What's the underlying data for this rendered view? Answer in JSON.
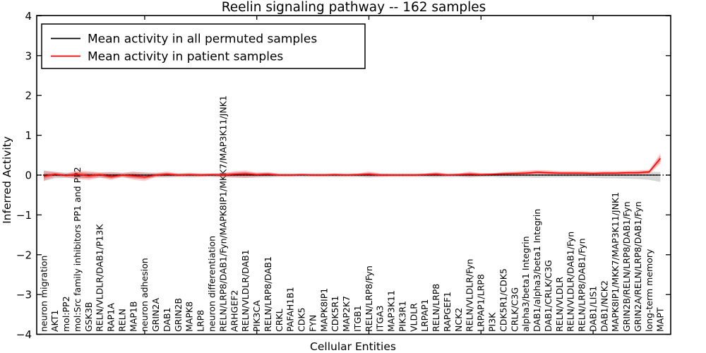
{
  "chart_data": {
    "type": "line",
    "title": "Reelin signaling pathway -- 162 samples",
    "xlabel": "Cellular Entities",
    "ylabel": "Inferred Activity",
    "ylim": [
      -4,
      4
    ],
    "yticks": [
      4,
      3,
      2,
      1,
      0,
      -1,
      -2,
      -3,
      -4
    ],
    "xtick_positions": [
      9,
      19,
      29,
      39,
      49
    ],
    "grid": false,
    "legend_position": "upper left",
    "zero_line": 0,
    "categories": [
      "neuron migration",
      "AKT1",
      "mol:PP2",
      "mol:Src family inhibitors PP1 and PP2",
      "GSK3B",
      "RELN/VLDLR/DAB1/P13K",
      "RAP1A",
      "RELN",
      "MAP1B",
      "neuron adhesion",
      "GRIN2A",
      "DAB1",
      "GRIN2B",
      "MAPK8",
      "LRP8",
      "neuron differentiation",
      "RELN/LRP8/DAB1/Fyn/MAPK8IP1/MKK7/MAP3K11/JNK1",
      "ARHGEF2",
      "RELN/VLDLR/DAB1",
      "PIK3CA",
      "RELN/LRP8/DAB1",
      "CRKL",
      "PAFAH1B1",
      "CDK5",
      "FYN",
      "MAPK8IP1",
      "CDK5R1",
      "MAP2K7",
      "ITGB1",
      "RELN/LRP8/Fyn",
      "ITGA3",
      "MAP3K11",
      "PIK3R1",
      "VLDLR",
      "LRPAP1",
      "RELN/LRP8",
      "RAPGEF1",
      "NCK2",
      "RELN/VLDLR/Fyn",
      "LRPAP1/LRP8",
      "PI3K",
      "CDK5R1/CDK5",
      "CRLK/C3G",
      "alpha3/beta1 Integrin",
      "DAB1/alpha3/beta1 Integrin",
      "DAB1/CRLK/C3G",
      "RELN/VLDLR",
      "RELN/VLDLR/DAB1/Fyn",
      "RELN/LRP8/DAB1/Fyn",
      "DAB1/LIS1",
      "DAB1/NCK2",
      "MAPK8IP1/MKK7/MAP3K11/JNK1",
      "GRIN2B/RELN/LRP8/DAB1/Fyn",
      "GRIN2A/RELN/LRP8/DAB1/Fyn",
      "long-term memory",
      "MAPT"
    ],
    "series": [
      {
        "name": "Mean activity in all permuted samples",
        "color": "#000000",
        "band_color": "#999999",
        "values": [
          0,
          0,
          0,
          0,
          0,
          0,
          0,
          0,
          0,
          0,
          0,
          0,
          0,
          0,
          0,
          0,
          0,
          0,
          0,
          0,
          0,
          0,
          0,
          0,
          0,
          0,
          0,
          0,
          0,
          0,
          0,
          0,
          0,
          0,
          0,
          0,
          0,
          0,
          0,
          0,
          0,
          0,
          0,
          0,
          0,
          0,
          0,
          0,
          0,
          0,
          0,
          0,
          0,
          0,
          0,
          0
        ],
        "band_upper": [
          0.12,
          0.08,
          0.06,
          0.07,
          0.07,
          0.06,
          0.07,
          0.06,
          0.07,
          0.07,
          0.06,
          0.06,
          0.05,
          0.06,
          0.05,
          0.05,
          0.06,
          0.06,
          0.07,
          0.06,
          0.06,
          0.05,
          0.05,
          0.05,
          0.05,
          0.05,
          0.05,
          0.05,
          0.05,
          0.06,
          0.05,
          0.05,
          0.05,
          0.05,
          0.05,
          0.06,
          0.05,
          0.05,
          0.06,
          0.05,
          0.05,
          0.06,
          0.06,
          0.06,
          0.07,
          0.06,
          0.06,
          0.06,
          0.06,
          0.06,
          0.06,
          0.06,
          0.07,
          0.07,
          0.08,
          0.08
        ],
        "band_lower": [
          -0.15,
          -0.08,
          -0.07,
          -0.08,
          -0.08,
          -0.07,
          -0.08,
          -0.06,
          -0.08,
          -0.08,
          -0.06,
          -0.06,
          -0.05,
          -0.06,
          -0.05,
          -0.05,
          -0.06,
          -0.06,
          -0.07,
          -0.06,
          -0.06,
          -0.05,
          -0.05,
          -0.05,
          -0.05,
          -0.05,
          -0.05,
          -0.05,
          -0.05,
          -0.06,
          -0.05,
          -0.05,
          -0.05,
          -0.05,
          -0.05,
          -0.06,
          -0.05,
          -0.05,
          -0.06,
          -0.05,
          -0.05,
          -0.06,
          -0.06,
          -0.06,
          -0.07,
          -0.06,
          -0.06,
          -0.06,
          -0.06,
          -0.07,
          -0.08,
          -0.08,
          -0.09,
          -0.1,
          -0.12,
          -0.17
        ]
      },
      {
        "name": "Mean activity in patient samples",
        "color": "#ff0000",
        "band_color": "#ff0000",
        "values": [
          -0.03,
          0.02,
          -0.01,
          0.02,
          -0.02,
          0.01,
          -0.04,
          0.0,
          -0.02,
          -0.05,
          0.0,
          0.02,
          0.0,
          0.01,
          0.0,
          0.01,
          0.0,
          0.02,
          0.03,
          0.01,
          0.02,
          0.0,
          0.0,
          0.01,
          0.0,
          0.0,
          0.01,
          0.0,
          0.01,
          0.02,
          0.0,
          0.0,
          0.0,
          0.0,
          0.01,
          0.02,
          0.0,
          0.01,
          0.02,
          0.01,
          0.02,
          0.03,
          0.04,
          0.05,
          0.07,
          0.06,
          0.05,
          0.05,
          0.05,
          0.04,
          0.05,
          0.05,
          0.06,
          0.06,
          0.08,
          0.42
        ],
        "band_upper": [
          0.1,
          0.08,
          0.04,
          0.12,
          0.1,
          0.07,
          0.08,
          0.05,
          0.09,
          0.06,
          0.05,
          0.09,
          0.04,
          0.05,
          0.04,
          0.04,
          0.05,
          0.1,
          0.12,
          0.06,
          0.08,
          0.03,
          0.03,
          0.03,
          0.03,
          0.03,
          0.04,
          0.03,
          0.04,
          0.09,
          0.04,
          0.03,
          0.03,
          0.03,
          0.04,
          0.08,
          0.03,
          0.04,
          0.09,
          0.05,
          0.05,
          0.08,
          0.09,
          0.11,
          0.13,
          0.12,
          0.1,
          0.1,
          0.1,
          0.09,
          0.1,
          0.1,
          0.11,
          0.12,
          0.14,
          0.55
        ],
        "band_lower": [
          -0.14,
          -0.05,
          -0.06,
          -0.1,
          -0.13,
          -0.06,
          -0.13,
          -0.05,
          -0.12,
          -0.15,
          -0.05,
          -0.05,
          -0.04,
          -0.04,
          -0.04,
          -0.03,
          -0.05,
          -0.06,
          -0.07,
          -0.05,
          -0.04,
          -0.03,
          -0.03,
          -0.02,
          -0.03,
          -0.03,
          -0.03,
          -0.03,
          -0.03,
          -0.05,
          -0.04,
          -0.03,
          -0.03,
          -0.03,
          -0.03,
          -0.04,
          -0.03,
          -0.03,
          -0.05,
          -0.03,
          -0.02,
          -0.01,
          -0.01,
          0.0,
          0.02,
          0.01,
          0.01,
          0.0,
          0.0,
          0.0,
          0.0,
          0.0,
          0.01,
          0.01,
          0.03,
          0.28
        ]
      }
    ]
  }
}
